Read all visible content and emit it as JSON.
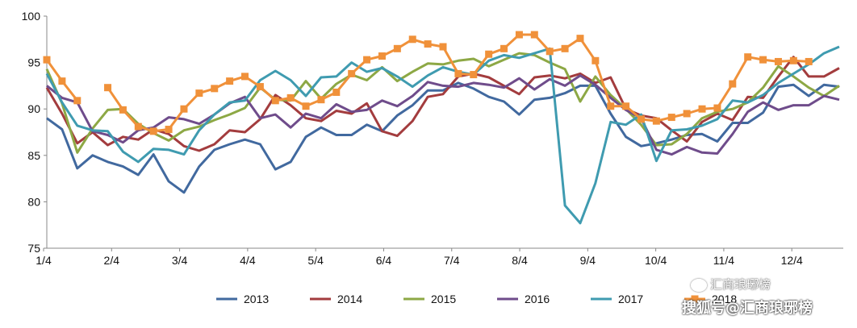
{
  "chart_data": {
    "type": "line",
    "ylim": [
      75,
      100
    ],
    "yticks": [
      "75",
      "80",
      "85",
      "90",
      "95",
      "100"
    ],
    "xtick_labels": [
      "1/4",
      "2/4",
      "3/4",
      "4/4",
      "5/4",
      "6/4",
      "7/4",
      "8/4",
      "9/4",
      "10/4",
      "11/4",
      "12/4"
    ],
    "legend_placement": "bottom",
    "grid": false,
    "series": [
      {
        "name": "2013",
        "color": "#41699f",
        "marker": "none",
        "values": [
          89.0,
          87.8,
          83.6,
          85.0,
          84.3,
          83.8,
          82.9,
          85.1,
          82.2,
          81.0,
          83.8,
          85.6,
          86.2,
          86.7,
          86.2,
          83.5,
          84.3,
          87.0,
          88.0,
          87.2,
          87.2,
          88.3,
          87.6,
          89.3,
          90.4,
          92.0,
          92.0,
          92.8,
          92.2,
          91.3,
          90.8,
          89.4,
          91.0,
          91.2,
          91.7,
          92.5,
          92.5,
          89.5,
          87.0,
          86.0,
          86.3,
          86.7,
          87.2,
          87.3,
          86.5,
          88.5,
          88.5,
          89.6,
          92.4,
          92.6,
          91.4,
          92.6,
          92.4
        ]
      },
      {
        "name": "2014",
        "color": "#a33c3e",
        "marker": "none",
        "values": [
          92.3,
          89.5,
          86.3,
          87.5,
          86.1,
          87.0,
          86.7,
          87.8,
          87.3,
          86.0,
          85.5,
          86.2,
          87.7,
          87.5,
          88.9,
          91.5,
          90.4,
          89.0,
          88.7,
          89.8,
          89.5,
          90.6,
          87.6,
          87.1,
          88.7,
          91.3,
          91.6,
          93.5,
          93.8,
          93.4,
          92.5,
          91.6,
          93.4,
          93.6,
          93.3,
          93.8,
          92.8,
          93.4,
          90.0,
          89.3,
          89.0,
          87.7,
          86.5,
          88.6,
          89.5,
          88.8,
          91.3,
          91.2,
          93.5,
          95.6,
          93.5,
          93.5,
          94.4
        ]
      },
      {
        "name": "2015",
        "color": "#8da845",
        "marker": "none",
        "values": [
          94.3,
          90.6,
          85.3,
          87.9,
          89.9,
          90.0,
          88.4,
          87.4,
          86.6,
          87.7,
          88.1,
          88.8,
          89.4,
          90.1,
          92.3,
          91.0,
          90.9,
          93.0,
          91.1,
          92.7,
          93.7,
          93.1,
          94.5,
          93.0,
          94.0,
          94.9,
          94.8,
          95.2,
          95.4,
          94.6,
          95.3,
          96.0,
          95.8,
          95.0,
          94.3,
          90.8,
          93.5,
          91.5,
          90.0,
          88.3,
          86.1,
          86.2,
          87.3,
          89.0,
          89.7,
          90.0,
          90.7,
          92.3,
          94.6,
          93.5,
          92.3,
          91.4,
          92.5
        ]
      },
      {
        "name": "2016",
        "color": "#6f4c8b",
        "marker": "none",
        "values": [
          92.5,
          91.2,
          90.7,
          87.6,
          87.2,
          86.4,
          87.7,
          88.0,
          89.1,
          88.9,
          88.4,
          89.4,
          90.6,
          91.3,
          89.0,
          89.4,
          88.0,
          89.5,
          89.0,
          90.5,
          89.7,
          89.9,
          90.9,
          90.3,
          91.4,
          92.9,
          92.5,
          92.4,
          92.8,
          92.6,
          92.3,
          93.3,
          92.1,
          93.2,
          92.5,
          93.6,
          92.6,
          91.2,
          89.9,
          89.0,
          85.6,
          85.1,
          85.9,
          85.3,
          85.2,
          87.3,
          89.7,
          90.7,
          89.9,
          90.4,
          90.4,
          91.4,
          91.0
        ]
      },
      {
        "name": "2017",
        "color": "#3f9bb0",
        "marker": "none",
        "values": [
          93.8,
          90.7,
          88.2,
          87.7,
          87.6,
          85.4,
          84.3,
          85.7,
          85.6,
          85.1,
          87.7,
          89.4,
          90.7,
          90.9,
          93.1,
          94.1,
          93.1,
          91.4,
          93.4,
          93.5,
          95.0,
          94.0,
          94.4,
          93.5,
          92.4,
          93.6,
          94.5,
          94.0,
          93.7,
          95.2,
          95.8,
          95.5,
          96.0,
          96.5,
          79.6,
          77.7,
          82.0,
          88.6,
          88.3,
          89.4,
          84.4,
          87.7,
          87.8,
          88.2,
          88.9,
          90.9,
          90.7,
          91.5,
          92.8,
          93.8,
          94.8,
          96.0,
          96.7
        ]
      },
      {
        "name": "2018",
        "color": "#f0913a",
        "marker": "square",
        "values": [
          95.3,
          93.0,
          90.9,
          null,
          92.3,
          89.9,
          88.1,
          87.6,
          87.8,
          90.0,
          91.7,
          92.2,
          93.0,
          93.5,
          92.4,
          90.9,
          91.2,
          90.3,
          91.0,
          91.8,
          93.8,
          95.3,
          95.7,
          96.5,
          97.5,
          97.0,
          96.7,
          93.8,
          93.7,
          95.9,
          96.5,
          98.0,
          98.0,
          96.2,
          96.5,
          97.6,
          95.2,
          90.3,
          90.3,
          88.9,
          88.7,
          89.1,
          89.5,
          90.0,
          90.1,
          92.7,
          95.6,
          95.3,
          95.1,
          95.2,
          95.1,
          null,
          null
        ]
      }
    ]
  },
  "watermark": {
    "line1": "汇商琅琊榜",
    "line2": "搜狐号@汇商琅琊榜"
  }
}
